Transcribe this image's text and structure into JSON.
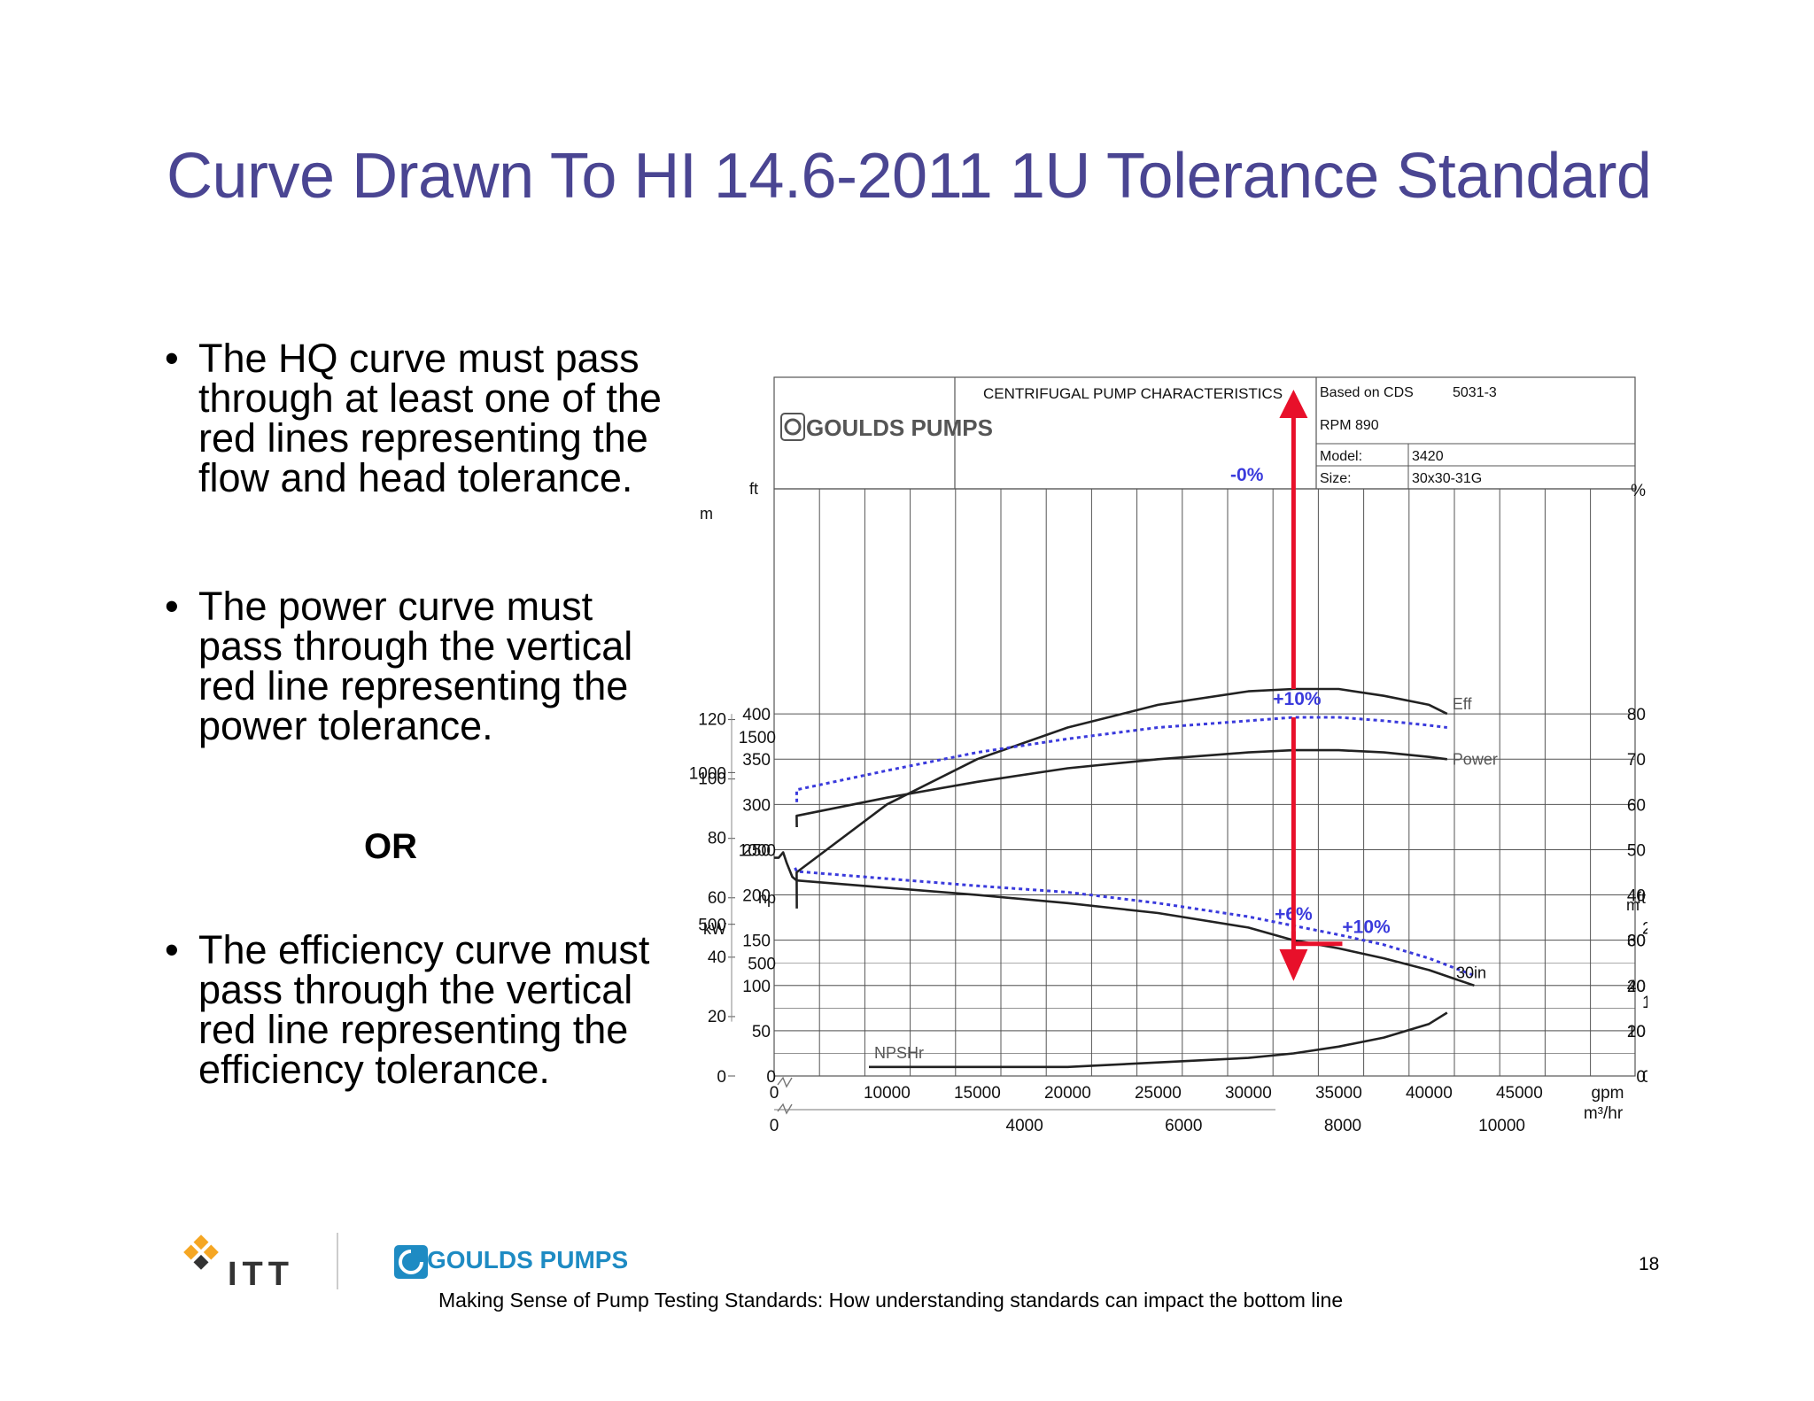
{
  "title": "Curve Drawn To HI 14.6-2011 1U Tolerance Standard",
  "bullets": [
    "The HQ curve must pass|through at least one of the|red lines representing the|flow and head tolerance.",
    "The power curve must|pass through the vertical|red line representing the|power tolerance.",
    "The efficiency curve must|pass through the vertical|red line representing the|efficiency tolerance."
  ],
  "bullet_symbol": "•",
  "or_text": "OR",
  "footer": {
    "logo_itt": "ITT",
    "logo_goulds": "GOULDS PUMPS",
    "text": "Making Sense of Pump Testing Standards: How understanding standards can impact the bottom line",
    "page_number": "18"
  },
  "chart_header": {
    "logo": "GOULDS PUMPS",
    "title": "CENTRIFUGAL PUMP CHARACTERISTICS",
    "based_on_label": "Based on CDS",
    "based_on_value": "5031-3",
    "rpm": "RPM  890",
    "model_label": "Model:",
    "model_value": "3420",
    "size_label": "Size:",
    "size_value": "30x30-31G"
  },
  "colors": {
    "title": "#4a4592",
    "tolerance_arrow": "#e8102a",
    "tolerance_label": "#3a3adc",
    "curve": "#222222",
    "grid": "#555555",
    "goulds_blue": "#1e8bc3"
  },
  "chart_data": {
    "type": "line",
    "x_axis": {
      "gpm_label": "gpm",
      "gpm_ticks": [
        "0",
        "10000",
        "15000",
        "20000",
        "25000",
        "30000",
        "35000",
        "40000",
        "45000"
      ],
      "m3hr_label": "m³/hr",
      "m3hr_ticks": [
        "0",
        "4000",
        "6000",
        "8000",
        "10000"
      ],
      "range_gpm": [
        0,
        47500
      ]
    },
    "head_axis": {
      "ft_label": "ft",
      "ft_ticks": [
        "400",
        "350",
        "300",
        "250",
        "200",
        "150",
        "100",
        "50"
      ],
      "m_label": "m",
      "m_ticks": [
        "120",
        "100",
        "80",
        "60",
        "40",
        "20"
      ],
      "range_ft": [
        0,
        450
      ]
    },
    "eff_axis": {
      "label": "%",
      "ticks": [
        "80",
        "70",
        "60",
        "50",
        "40",
        "30",
        "20",
        "10"
      ],
      "range": [
        0,
        90
      ]
    },
    "power_axis": {
      "hp_label": "hp",
      "hp_ticks": [
        "1500",
        "1000",
        "500",
        "0"
      ],
      "kw_label": "kW",
      "kw_ticks": [
        "1000",
        "500",
        "0"
      ],
      "range_hp": [
        0,
        2000
      ]
    },
    "npsh_axis": {
      "ft_label": "ft",
      "ft_ticks": [
        "60",
        "40",
        "20",
        "0"
      ],
      "m_label": "m",
      "m_ticks": [
        "20",
        "10",
        "0"
      ],
      "range_ft": [
        0,
        80
      ]
    },
    "series": [
      {
        "name": "30in",
        "axis": "head_ft",
        "style": "solid",
        "x": [
          0,
          500,
          1000,
          1400,
          2000,
          5000,
          10000,
          15000,
          20000,
          25000,
          30000,
          32500,
          35000,
          37500,
          40000,
          42500
        ],
        "y": [
          241,
          241,
          247,
          235,
          220,
          216,
          208,
          200,
          191,
          180,
          164,
          150,
          141,
          130,
          117,
          100
        ]
      },
      {
        "name": "",
        "axis": "head_ft",
        "style": "dotted",
        "x": [
          2300,
          5000,
          10000,
          15000,
          20000,
          25000,
          30000,
          32500,
          35000,
          37500,
          40000,
          42500
        ],
        "y": [
          230,
          226,
          218,
          210,
          203,
          191,
          176,
          166,
          156,
          145,
          130,
          111
        ]
      },
      {
        "name": "Eff",
        "axis": "eff_pct",
        "style": "solid",
        "x": [
          2500,
          5000,
          10000,
          15000,
          20000,
          25000,
          30000,
          32500,
          35000,
          37500,
          40000,
          41000
        ],
        "y": [
          37,
          45,
          60,
          70,
          77,
          82,
          85,
          85.5,
          85.5,
          84,
          82,
          80
        ]
      },
      {
        "name": "Power",
        "axis": "power_hp",
        "style": "solid",
        "x": [
          2500,
          5000,
          10000,
          15000,
          20000,
          25000,
          30000,
          32500,
          35000,
          37500,
          40000,
          41000
        ],
        "y": [
          1100,
          1150,
          1230,
          1300,
          1360,
          1400,
          1430,
          1440,
          1440,
          1430,
          1410,
          1400
        ]
      },
      {
        "name": "",
        "axis": "power_hp",
        "style": "dotted",
        "x": [
          2500,
          5000,
          10000,
          15000,
          20000,
          25000,
          30000,
          32500,
          35000,
          37500,
          40000,
          41000
        ],
        "y": [
          1210,
          1265,
          1350,
          1430,
          1490,
          1540,
          1570,
          1585,
          1585,
          1570,
          1550,
          1540
        ]
      },
      {
        "name": "NPSHr",
        "axis": "npsh_ft",
        "style": "solid",
        "x": [
          9000,
          15000,
          20000,
          25000,
          30000,
          32500,
          35000,
          37500,
          40000,
          41000
        ],
        "y": [
          4,
          4,
          4,
          6,
          8,
          10,
          13,
          17,
          23,
          28
        ]
      }
    ],
    "annotations": [
      {
        "text": "-0%",
        "series": "Eff",
        "x": 32500,
        "arrow": "up"
      },
      {
        "text": "+6%",
        "series": "30in",
        "x": 32500,
        "arrow": "vertical"
      },
      {
        "text": "+10%",
        "series": "30in",
        "x": 35000,
        "arrow": "horizontal"
      },
      {
        "text": "+10%",
        "series": "Power",
        "x": 32500,
        "arrow": "down"
      }
    ]
  }
}
